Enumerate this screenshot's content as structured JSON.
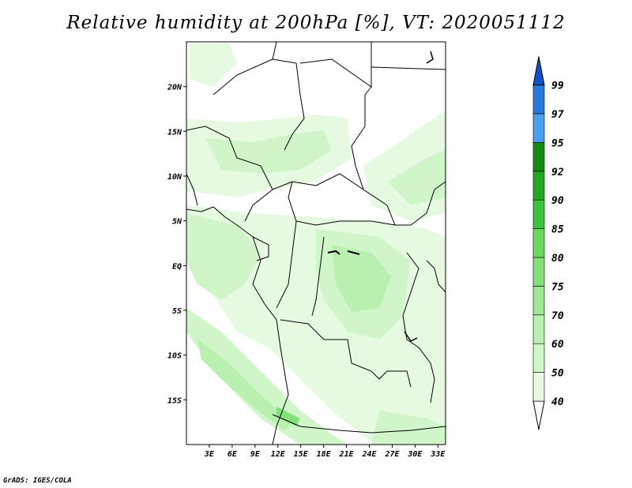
{
  "title": "Relative humidity at 200hPa [%], VT: 2020051112",
  "credit": "GrADS: IGES/COLA",
  "map": {
    "variable": "Relative humidity",
    "level": "200hPa",
    "units": "%",
    "valid_time": "2020051112",
    "lon_range": [
      0,
      34
    ],
    "lat_range": [
      -20,
      25
    ],
    "lon_ticks": [
      "3E",
      "6E",
      "9E",
      "12E",
      "15E",
      "18E",
      "21E",
      "24E",
      "27E",
      "30E",
      "33E"
    ],
    "lat_ticks": [
      "20N",
      "15N",
      "10N",
      "5N",
      "EQ",
      "5S",
      "10S",
      "15S"
    ]
  },
  "colorbar": {
    "levels": [
      "40",
      "50",
      "60",
      "70",
      "75",
      "80",
      "85",
      "90",
      "92",
      "95",
      "97",
      "99"
    ],
    "colors": [
      "#ffffff",
      "#e6fae1",
      "#cff5c8",
      "#b9f0b0",
      "#a0e896",
      "#86e07a",
      "#6cd860",
      "#3cc23c",
      "#24a824",
      "#148c14",
      "#4aa0f0",
      "#2878dc",
      "#1450c8"
    ]
  }
}
